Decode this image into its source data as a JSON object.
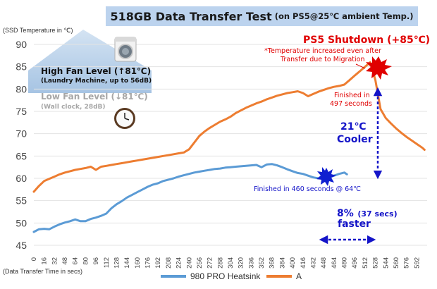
{
  "chart_data": {
    "type": "line",
    "title_main": "518GB Data Transfer Test",
    "title_sub": "(on PS5@25℃ ambient Temp.)",
    "ylabel": "(SSD Temperature in ℃)",
    "xlabel": "(Data Transfer Time in secs)",
    "ylim": [
      45,
      93
    ],
    "xlim": [
      0,
      608
    ],
    "yticks": [
      "45",
      "50",
      "55",
      "60",
      "65",
      "70",
      "75",
      "80",
      "85",
      "90"
    ],
    "xticks": [
      "0",
      "16",
      "32",
      "48",
      "64",
      "80",
      "96",
      "112",
      "128",
      "144",
      "160",
      "176",
      "192",
      "208",
      "224",
      "240",
      "256",
      "272",
      "288",
      "304",
      "320",
      "336",
      "352",
      "368",
      "384",
      "400",
      "416",
      "432",
      "448",
      "464",
      "480",
      "496",
      "512",
      "528",
      "544",
      "560",
      "576",
      "592"
    ],
    "series": [
      {
        "name": "980 PRO Heatsink",
        "color": "#5b9bd5",
        "x": [
          0,
          8,
          16,
          24,
          32,
          40,
          48,
          56,
          64,
          72,
          80,
          88,
          96,
          104,
          112,
          120,
          128,
          136,
          144,
          152,
          160,
          168,
          176,
          184,
          192,
          200,
          208,
          216,
          224,
          232,
          240,
          248,
          256,
          264,
          272,
          280,
          288,
          296,
          304,
          312,
          320,
          328,
          336,
          344,
          352,
          360,
          368,
          376,
          384,
          392,
          400,
          408,
          416,
          424,
          432,
          440,
          448,
          456,
          464,
          472,
          480,
          484
        ],
        "values": [
          48,
          48.6,
          48.7,
          48.6,
          49.2,
          49.7,
          50.1,
          50.4,
          50.8,
          50.4,
          50.4,
          50.9,
          51.2,
          51.6,
          52.1,
          53.3,
          54.2,
          54.9,
          55.7,
          56.3,
          56.9,
          57.5,
          58.1,
          58.6,
          58.9,
          59.4,
          59.7,
          60.0,
          60.4,
          60.7,
          61.0,
          61.3,
          61.5,
          61.7,
          61.9,
          62.1,
          62.2,
          62.4,
          62.5,
          62.6,
          62.7,
          62.8,
          62.9,
          63.0,
          62.5,
          63.1,
          63.2,
          62.9,
          62.5,
          62.0,
          61.6,
          61.2,
          61.0,
          60.6,
          60.2,
          60.0,
          60.0,
          60.2,
          60.6,
          61.0,
          61.3,
          60.9
        ]
      },
      {
        "name": "A",
        "color": "#ed7d31",
        "x": [
          0,
          8,
          16,
          24,
          32,
          40,
          48,
          56,
          64,
          72,
          80,
          88,
          96,
          104,
          112,
          120,
          128,
          136,
          144,
          152,
          160,
          168,
          176,
          184,
          192,
          200,
          208,
          216,
          224,
          232,
          240,
          248,
          256,
          264,
          272,
          280,
          288,
          296,
          304,
          312,
          320,
          328,
          336,
          344,
          352,
          360,
          368,
          376,
          384,
          392,
          400,
          408,
          416,
          424,
          432,
          440,
          448,
          456,
          464,
          472,
          480,
          488,
          496,
          504,
          512,
          520,
          528,
          536,
          544,
          552,
          560,
          568,
          576,
          584,
          592,
          600,
          604
        ],
        "values": [
          57,
          58.3,
          59.4,
          59.9,
          60.4,
          60.9,
          61.3,
          61.6,
          61.9,
          62.1,
          62.3,
          62.6,
          61.9,
          62.6,
          62.8,
          63.0,
          63.2,
          63.4,
          63.6,
          63.8,
          64.0,
          64.2,
          64.4,
          64.6,
          64.8,
          65.0,
          65.2,
          65.4,
          65.6,
          65.8,
          66.5,
          68.0,
          69.5,
          70.5,
          71.3,
          72.0,
          72.7,
          73.2,
          73.8,
          74.6,
          75.2,
          75.8,
          76.3,
          76.8,
          77.2,
          77.7,
          78.1,
          78.5,
          78.8,
          79.1,
          79.3,
          79.5,
          79.1,
          78.4,
          78.9,
          79.4,
          79.8,
          80.2,
          80.5,
          80.7,
          81.0,
          82.0,
          83.0,
          84.0,
          85.0,
          86.0,
          82.0,
          75.5,
          73.5,
          72.3,
          71.2,
          70.2,
          69.3,
          68.5,
          67.7,
          66.9,
          66.4
        ]
      }
    ]
  },
  "annotations": {
    "shutdown_title": "PS5 Shutdown (+85℃)",
    "shutdown_note_1": "*Temperature increased even after",
    "shutdown_note_2": "Transfer due to Migration",
    "finished_a_1": "Finished in",
    "finished_a_2": "497 seconds",
    "cooler_1": "21℃",
    "cooler_2": "Cooler",
    "finished_b": "Finished in 460 seconds @ 64℃",
    "faster_1": "8%",
    "faster_1b": "(37 secs)",
    "faster_2": "faster",
    "high_fan_1": "High Fan Level (↑81℃)",
    "high_fan_2": "(Laundry Machine, up to 56dB)",
    "low_fan_1": "Low Fan Level (↓81℃)",
    "low_fan_2": "(Wall clock, 28dB)"
  },
  "icons": [
    "washing-machine-icon",
    "wall-clock-icon",
    "explosion-icon"
  ]
}
